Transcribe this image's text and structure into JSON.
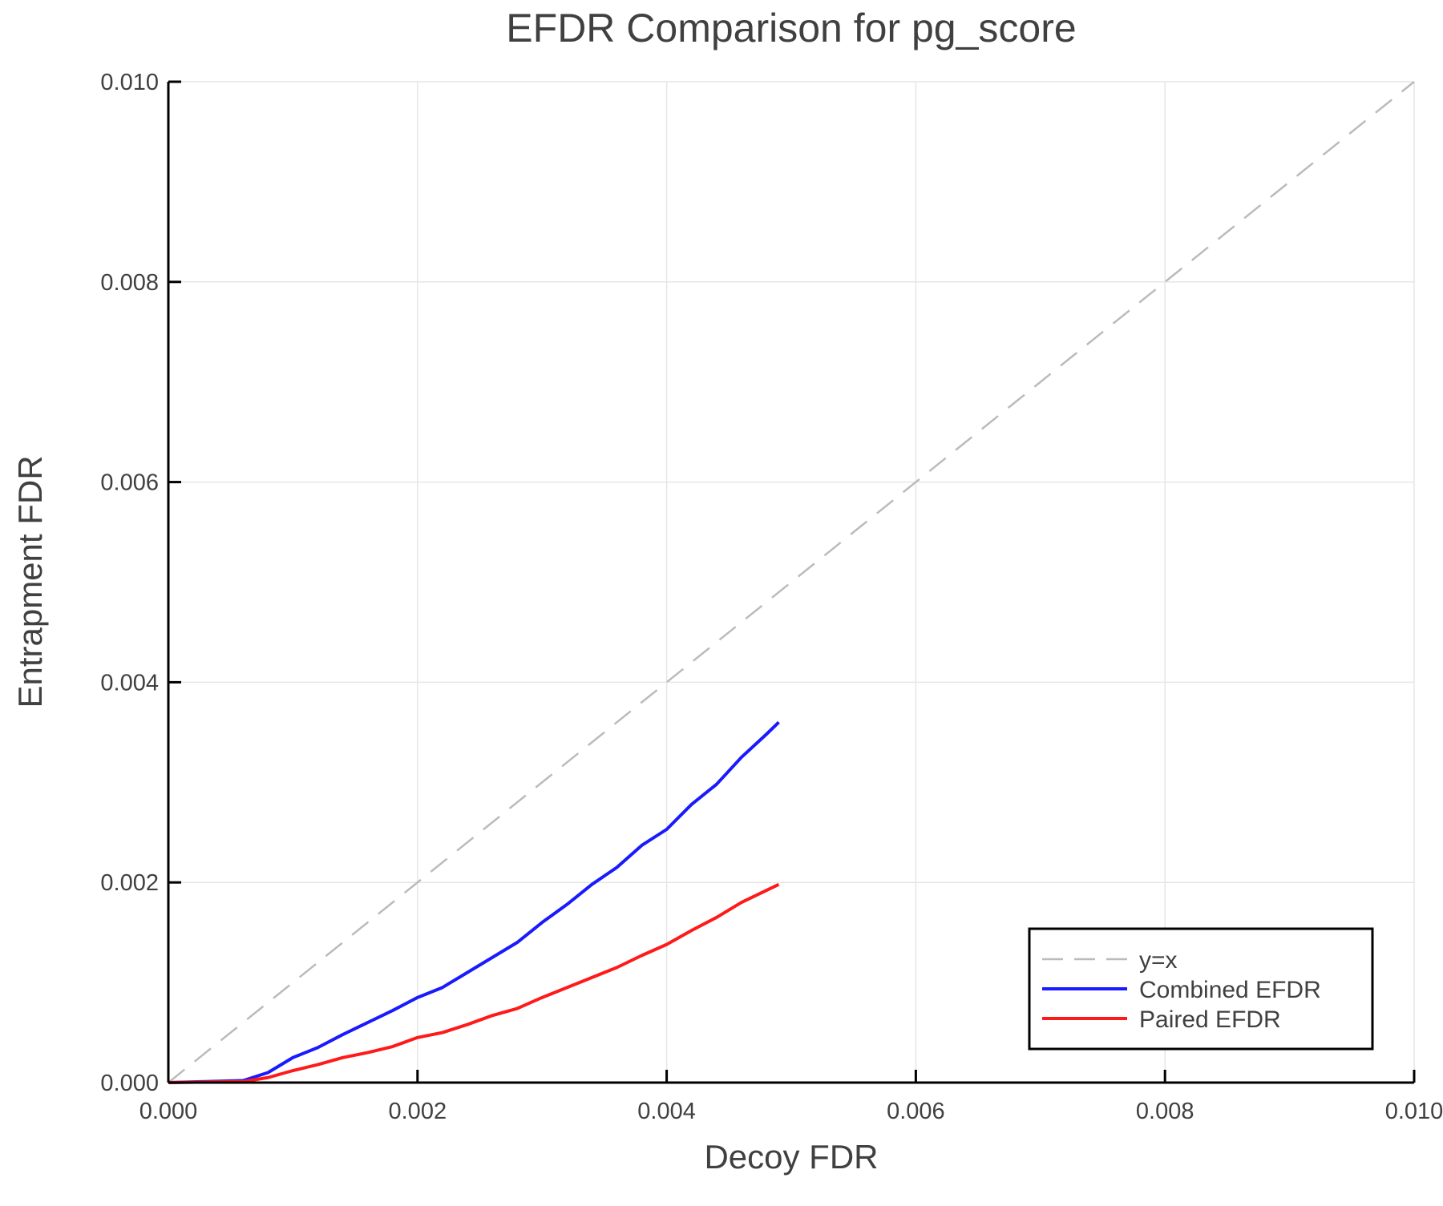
{
  "chart_data": {
    "type": "line",
    "title": "EFDR Comparison for pg_score",
    "xlabel": "Decoy FDR",
    "ylabel": "Entrapment FDR",
    "xlim": [
      0,
      0.01
    ],
    "ylim": [
      0,
      0.01
    ],
    "xticks": [
      "0.000",
      "0.002",
      "0.004",
      "0.006",
      "0.008",
      "0.010"
    ],
    "yticks": [
      "0.000",
      "0.002",
      "0.004",
      "0.006",
      "0.008",
      "0.010"
    ],
    "grid": true,
    "legend_position": "bottom-right",
    "series": [
      {
        "name": "y=x",
        "color": "#bbbbbb",
        "style": "dashed",
        "x": [
          0,
          0.01
        ],
        "y": [
          0,
          0.01
        ]
      },
      {
        "name": "Combined EFDR",
        "color": "#1a1aff",
        "style": "solid",
        "x": [
          0,
          0.0003,
          0.0006,
          0.0008,
          0.001,
          0.0012,
          0.0014,
          0.0016,
          0.0018,
          0.002,
          0.0022,
          0.0024,
          0.0026,
          0.0028,
          0.003,
          0.0032,
          0.0034,
          0.0036,
          0.0038,
          0.004,
          0.0042,
          0.0044,
          0.0046,
          0.0048,
          0.0049
        ],
        "y": [
          0,
          1e-05,
          2e-05,
          0.0001,
          0.00025,
          0.00035,
          0.00048,
          0.0006,
          0.00072,
          0.00085,
          0.00095,
          0.0011,
          0.00125,
          0.0014,
          0.0016,
          0.00178,
          0.00198,
          0.00215,
          0.00237,
          0.00253,
          0.00278,
          0.00298,
          0.00325,
          0.00348,
          0.0036
        ]
      },
      {
        "name": "Paired EFDR",
        "color": "#ff1a1a",
        "style": "solid",
        "x": [
          0,
          0.0006,
          0.0008,
          0.001,
          0.0012,
          0.0014,
          0.0016,
          0.0018,
          0.002,
          0.0022,
          0.0024,
          0.0026,
          0.0028,
          0.003,
          0.0032,
          0.0034,
          0.0036,
          0.0038,
          0.004,
          0.0042,
          0.0044,
          0.0046,
          0.0048,
          0.0049
        ],
        "y": [
          0,
          1e-05,
          5e-05,
          0.00012,
          0.00018,
          0.00025,
          0.0003,
          0.00036,
          0.00045,
          0.0005,
          0.00058,
          0.00067,
          0.00074,
          0.00085,
          0.00095,
          0.00105,
          0.00115,
          0.00127,
          0.00138,
          0.00152,
          0.00165,
          0.0018,
          0.00192,
          0.00198
        ]
      }
    ]
  }
}
